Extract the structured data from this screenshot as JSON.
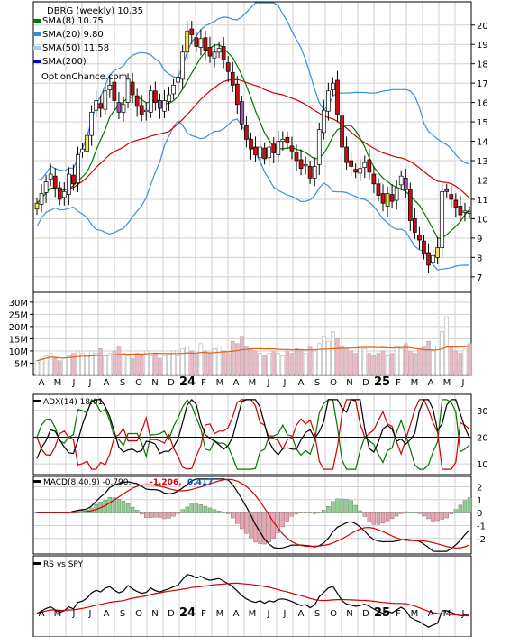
{
  "chart_data": {
    "type": "candlestick",
    "symbol_label": "DBRG (weekly) 10.35",
    "watermark": "OptionChance.com",
    "legend": [
      {
        "label": "SMA(8) 10.75",
        "color": "#007700"
      },
      {
        "label": "SMA(20) 9.80",
        "color": "#2f8fd8"
      },
      {
        "label": "SMA(50) 11.58",
        "color": "#9fd0ee"
      },
      {
        "label": "SMA(200)",
        "color": "#0000dd"
      }
    ],
    "price_axis": {
      "ticks": [
        7,
        8,
        9,
        10,
        11,
        12,
        13,
        14,
        15,
        16,
        17,
        18,
        19,
        20
      ],
      "ylim": [
        6.2,
        21.2
      ]
    },
    "volume_axis": {
      "ticks": [
        "5M",
        "10M",
        "15M",
        "20M",
        "25M",
        "30M"
      ],
      "values": [
        5,
        10,
        15,
        20,
        25,
        30
      ]
    },
    "x_axis_labels": [
      "A",
      "M",
      "J",
      "J",
      "A",
      "S",
      "O",
      "N",
      "D",
      "24",
      "F",
      "M",
      "A",
      "M",
      "J",
      "J",
      "A",
      "S",
      "O",
      "N",
      "D",
      "25",
      "F",
      "M",
      "A",
      "M",
      "J"
    ],
    "close": [
      10.8,
      11.3,
      11.9,
      12.3,
      11.6,
      11.0,
      11.4,
      12.3,
      11.8,
      13.3,
      13.6,
      14.3,
      15.5,
      16.1,
      15.7,
      16.6,
      16.9,
      16.1,
      15.5,
      15.9,
      17.2,
      16.4,
      15.8,
      15.4,
      15.6,
      16.6,
      16.0,
      15.7,
      16.1,
      16.4,
      16.9,
      17.3,
      18.6,
      19.7,
      19.5,
      18.9,
      19.3,
      18.7,
      18.4,
      18.6,
      18.8,
      18.2,
      17.6,
      16.9,
      15.9,
      14.9,
      14.1,
      13.6,
      13.3,
      13.7,
      13.1,
      13.7,
      13.4,
      14.0,
      14.1,
      13.9,
      13.5,
      13.0,
      12.6,
      12.8,
      12.1,
      12.7,
      14.6,
      15.6,
      16.6,
      17.0,
      15.4,
      13.7,
      12.9,
      12.7,
      12.4,
      12.6,
      12.9,
      12.4,
      11.8,
      11.2,
      10.8,
      11.3,
      10.9,
      11.6,
      12.2,
      11.5,
      9.9,
      9.3,
      8.9,
      8.2,
      7.6,
      8.1,
      8.5,
      11.4,
      11.4,
      11.0,
      10.6,
      10.2,
      10.4,
      10.35
    ],
    "volume_M": [
      6,
      7,
      8,
      9,
      7,
      6,
      7,
      8,
      9,
      10,
      9,
      8,
      10,
      9,
      11,
      8,
      9,
      10,
      12,
      9,
      8,
      7,
      9,
      8,
      10,
      8,
      9,
      7,
      8,
      9,
      10,
      8,
      11,
      12,
      10,
      9,
      13,
      10,
      9,
      11,
      12,
      10,
      9,
      14,
      13,
      16,
      12,
      11,
      10,
      9,
      8,
      9,
      10,
      9,
      8,
      10,
      9,
      11,
      10,
      9,
      12,
      10,
      13,
      16,
      14,
      18,
      15,
      12,
      11,
      10,
      9,
      12,
      11,
      9,
      8,
      9,
      10,
      8,
      9,
      12,
      11,
      13,
      10,
      9,
      11,
      12,
      14,
      10,
      12,
      18,
      24,
      12,
      10,
      9,
      11,
      13
    ],
    "adx": {
      "label": "ADX(14) 18.01",
      "ticks": [
        10,
        20,
        30
      ],
      "ylim": [
        6,
        36
      ]
    },
    "macd": {
      "label": "MACD(8,40,9) -0.790,",
      "signal_label": "-1.206,",
      "hist_label": "0.417",
      "ticks": [
        -2,
        -1,
        0,
        1,
        2
      ],
      "ylim": [
        -3.2,
        2.8
      ]
    },
    "rs": {
      "label": "RS vs SPY"
    }
  }
}
